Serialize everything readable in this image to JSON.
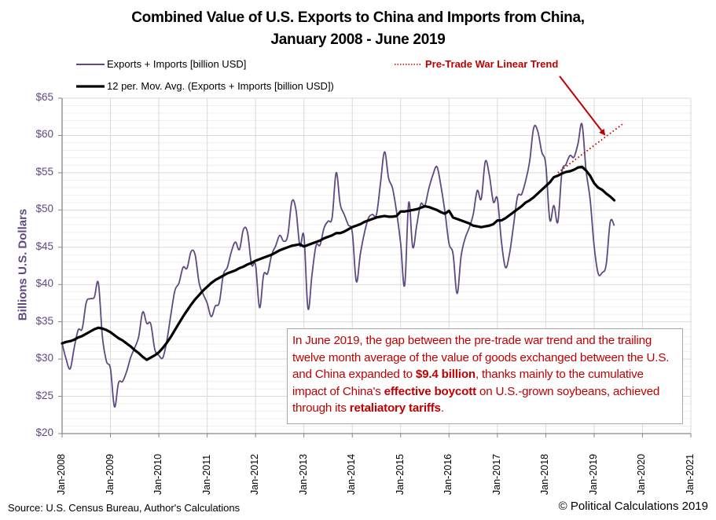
{
  "chart_data": {
    "type": "line",
    "title_line1": "Combined Value of U.S. Exports to China and Imports from China,",
    "title_line2": "January 2008 - June 2019",
    "ylabel": "Billions U.S. Dollars",
    "xlabel": "",
    "ylim": [
      20,
      65
    ],
    "y_major_step": 5,
    "y_minor_step": 1,
    "y_ticks": [
      20,
      25,
      30,
      35,
      40,
      45,
      50,
      55,
      60,
      65
    ],
    "y_tick_labels": [
      "$20",
      "$25",
      "$30",
      "$35",
      "$40",
      "$45",
      "$50",
      "$55",
      "$60",
      "$65"
    ],
    "x_range": [
      "Jan-2008",
      "Jan-2021"
    ],
    "x_ticks": [
      "Jan-2008",
      "Jan-2009",
      "Jan-2010",
      "Jan-2011",
      "Jan-2012",
      "Jan-2013",
      "Jan-2014",
      "Jan-2015",
      "Jan-2016",
      "Jan-2017",
      "Jan-2018",
      "Jan-2019",
      "Jan-2020",
      "Jan-2021"
    ],
    "grid": true,
    "legend_position": "top",
    "x_start": "Jan-2008",
    "x_frequency": "monthly",
    "series": [
      {
        "name": "Exports + Imports [billion USD]",
        "color": "#5e4a82",
        "style": "solid-thin",
        "values": [
          32.1,
          30.0,
          28.7,
          31.5,
          33.9,
          34.1,
          37.6,
          38.1,
          38.3,
          40.2,
          33.0,
          29.7,
          28.7,
          23.6,
          26.8,
          27.0,
          28.3,
          30.2,
          31.5,
          33.0,
          36.3,
          34.8,
          34.7,
          31.3,
          30.5,
          30.2,
          32.5,
          36.0,
          39.2,
          40.2,
          42.3,
          42.2,
          44.4,
          44.0,
          40.2,
          38.7,
          37.5,
          35.7,
          37.1,
          37.6,
          41.3,
          42.3,
          44.4,
          45.7,
          44.7,
          47.4,
          47.0,
          42.7,
          42.6,
          36.9,
          41.3,
          41.5,
          44.0,
          45.2,
          46.6,
          45.8,
          46.6,
          51.1,
          50.1,
          45.2,
          46.5,
          36.8,
          41.3,
          45.2,
          45.3,
          47.6,
          48.5,
          49.0,
          55.0,
          50.8,
          49.4,
          48.0,
          47.0,
          40.4,
          44.1,
          46.9,
          48.9,
          49.4,
          49.4,
          53.6,
          57.8,
          54.3,
          52.9,
          49.7,
          45.5,
          39.9,
          51.0,
          45.0,
          48.0,
          50.8,
          50.6,
          52.9,
          54.7,
          55.8,
          53.2,
          49.7,
          45.5,
          44.1,
          38.8,
          43.8,
          46.2,
          47.6,
          49.4,
          52.6,
          51.5,
          56.5,
          54.7,
          51.1,
          51.5,
          45.8,
          42.3,
          44.1,
          47.9,
          51.8,
          52.1,
          53.9,
          56.5,
          61.0,
          60.6,
          57.8,
          56.1,
          48.7,
          50.6,
          48.4,
          55.0,
          56.1,
          57.3,
          57.1,
          58.9,
          61.5,
          55.3,
          51.5,
          45.2,
          41.5,
          41.6,
          42.7,
          48.4,
          47.9
        ]
      },
      {
        "name": "12 per. Mov. Avg. (Exports + Imports [billion USD])",
        "color": "#000000",
        "style": "solid-thick",
        "values": [
          32.1,
          32.3,
          32.4,
          32.6,
          32.9,
          33.1,
          33.4,
          33.7,
          34.0,
          34.2,
          34.1,
          33.9,
          33.6,
          33.2,
          32.8,
          32.5,
          32.1,
          31.7,
          31.2,
          30.8,
          30.3,
          29.9,
          30.2,
          30.5,
          30.9,
          31.5,
          32.2,
          33.0,
          33.9,
          34.8,
          35.7,
          36.5,
          37.3,
          38.0,
          38.6,
          39.2,
          39.7,
          40.2,
          40.6,
          40.9,
          41.2,
          41.5,
          41.7,
          41.9,
          42.2,
          42.4,
          42.7,
          42.9,
          43.2,
          43.4,
          43.6,
          43.8,
          44.0,
          44.3,
          44.6,
          44.8,
          45.0,
          45.2,
          45.3,
          45.4,
          45.1,
          45.3,
          45.5,
          45.7,
          45.9,
          46.2,
          46.4,
          46.6,
          46.9,
          46.9,
          47.1,
          47.4,
          47.7,
          47.9,
          48.1,
          48.4,
          48.6,
          48.8,
          49.0,
          49.1,
          49.2,
          49.1,
          49.1,
          49.2,
          49.8,
          49.8,
          49.9,
          50.0,
          50.1,
          50.3,
          50.5,
          50.4,
          50.2,
          50.0,
          49.7,
          49.5,
          49.9,
          49.0,
          48.8,
          48.6,
          48.4,
          48.2,
          47.9,
          47.8,
          47.7,
          47.8,
          47.9,
          48.1,
          48.6,
          48.6,
          48.9,
          49.3,
          49.7,
          50.1,
          50.5,
          51.0,
          51.3,
          51.7,
          52.2,
          52.7,
          53.2,
          53.7,
          54.4,
          54.6,
          54.9,
          55.1,
          55.2,
          55.4,
          55.7,
          55.8,
          55.3,
          54.6,
          53.6,
          53.0,
          52.7,
          52.2,
          51.8,
          51.3
        ]
      },
      {
        "name": "Pre-Trade War Linear Trend",
        "color": "#c00000",
        "style": "dotted",
        "start": "Apr-2018",
        "end": "Aug-2019",
        "values_start_end": [
          55.0,
          61.5
        ]
      }
    ],
    "annotation": {
      "text_parts": [
        {
          "text": "In June 2019, the gap between the pre-trade war trend and the trailing twelve month average of the value of goods exchanged between the U.S. and China expanded to ",
          "bold": false
        },
        {
          "text": "$9.4 billion",
          "bold": true
        },
        {
          "text": ", thanks mainly to the cumulative impact of China's ",
          "bold": false
        },
        {
          "text": "effective boycott",
          "bold": true
        },
        {
          "text": " on U.S.-grown soybeans, achieved through its ",
          "bold": false
        },
        {
          "text": "retaliatory tariffs",
          "bold": true
        },
        {
          "text": ".",
          "bold": false
        }
      ],
      "color": "#c00000",
      "arrow_points_to": "Pre-Trade War Linear Trend"
    }
  },
  "legend": {
    "series1": "Exports + Imports [billion USD]",
    "series2": "12 per. Mov. Avg. (Exports + Imports [billion USD])",
    "trend": "Pre-Trade War Linear Trend"
  },
  "footer": {
    "source": "Source: U.S. Census Bureau, Author's Calculations",
    "copyright": "© Political Calculations 2019"
  }
}
